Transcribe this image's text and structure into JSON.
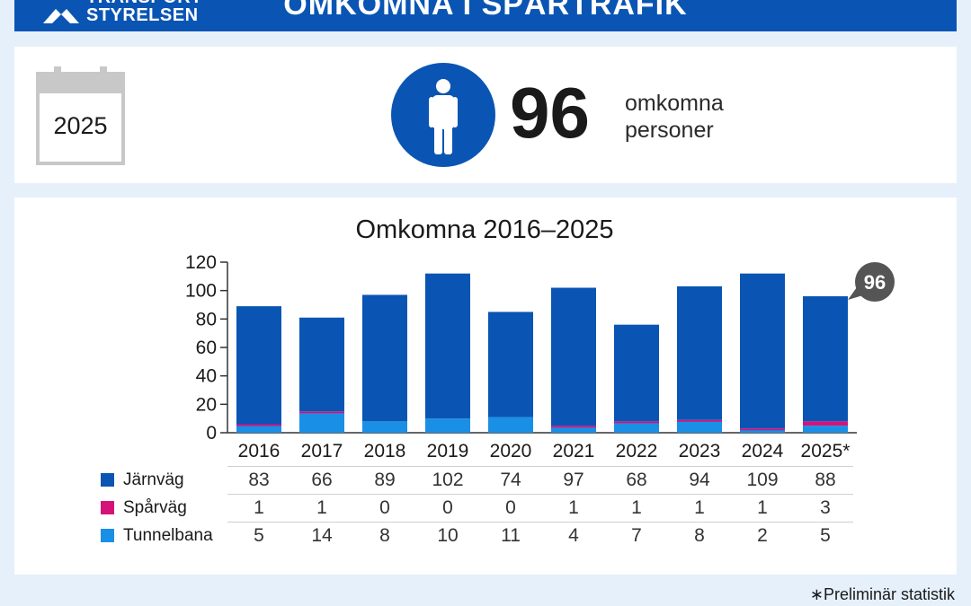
{
  "header": {
    "logo_line1": "TRANSPORT",
    "logo_line2": "STYRELSEN",
    "title": "OMKOMNA I SPÅRTRAFIK"
  },
  "summary": {
    "year": "2025",
    "number": "96",
    "caption_line1": "omkomna",
    "caption_line2": "personer",
    "icon": "person-icon"
  },
  "colors": {
    "jarnvag": "#0a55b3",
    "sparvag": "#d4127a",
    "tunnelbana": "#1a8fe6",
    "header": "#0a55b3",
    "callout": "#555555"
  },
  "chart_data": {
    "type": "bar",
    "stacked": true,
    "title": "Omkomna 2016–2025",
    "categories": [
      "2016",
      "2017",
      "2018",
      "2019",
      "2020",
      "2021",
      "2022",
      "2023",
      "2024",
      "2025*"
    ],
    "series": [
      {
        "name": "Järnväg",
        "values": [
          83,
          66,
          89,
          102,
          74,
          97,
          68,
          94,
          109,
          88
        ]
      },
      {
        "name": "Spårväg",
        "values": [
          1,
          1,
          0,
          0,
          0,
          1,
          1,
          1,
          1,
          3
        ]
      },
      {
        "name": "Tunnelbana",
        "values": [
          5,
          14,
          8,
          10,
          11,
          4,
          7,
          8,
          2,
          5
        ]
      }
    ],
    "yticks": [
      "0",
      "20",
      "40",
      "60",
      "80",
      "100",
      "120"
    ],
    "ylim": [
      0,
      120
    ],
    "callout": "96",
    "table_values": {
      "Järnväg": [
        "83",
        "66",
        "89",
        "102",
        "74",
        "97",
        "68",
        "94",
        "109",
        "88"
      ],
      "Spårväg": [
        "1",
        "1",
        "0",
        "0",
        "0",
        "1",
        "1",
        "1",
        "1",
        "3"
      ],
      "Tunnelbana": [
        "5",
        "14",
        "8",
        "10",
        "11",
        "4",
        "7",
        "8",
        "2",
        "5"
      ]
    }
  },
  "footnote": "∗Preliminär statistik"
}
